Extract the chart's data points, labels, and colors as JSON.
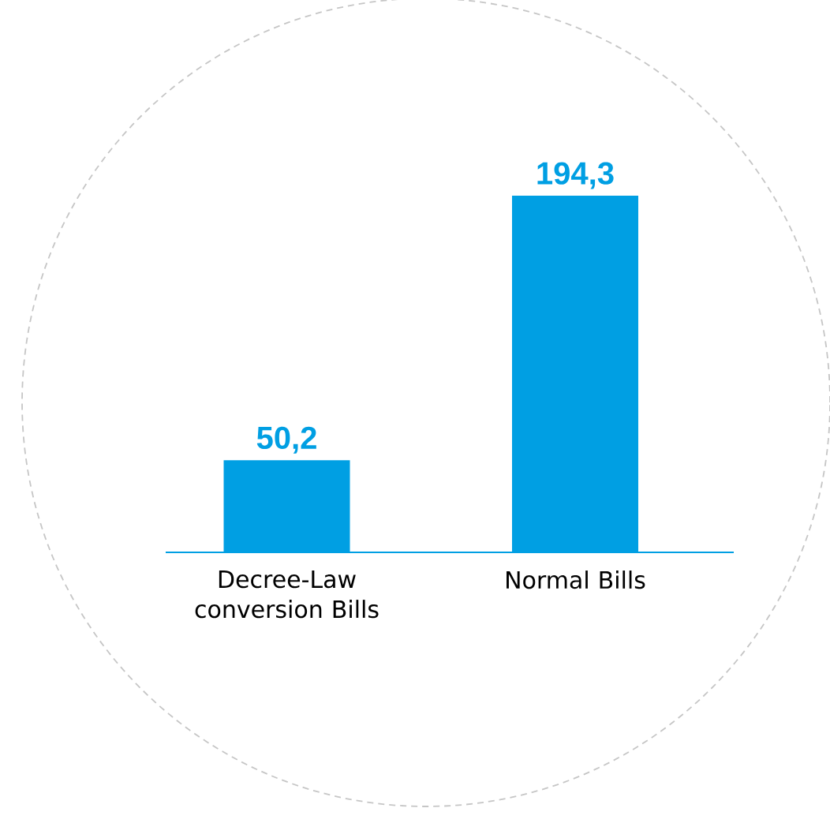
{
  "chart_data": {
    "type": "bar",
    "categories": [
      "Decree-Law conversion Bills",
      "Normal Bills"
    ],
    "values": [
      50.2,
      194.3
    ],
    "value_labels": [
      "50,2",
      "194,3"
    ],
    "color": "#009fe3"
  }
}
